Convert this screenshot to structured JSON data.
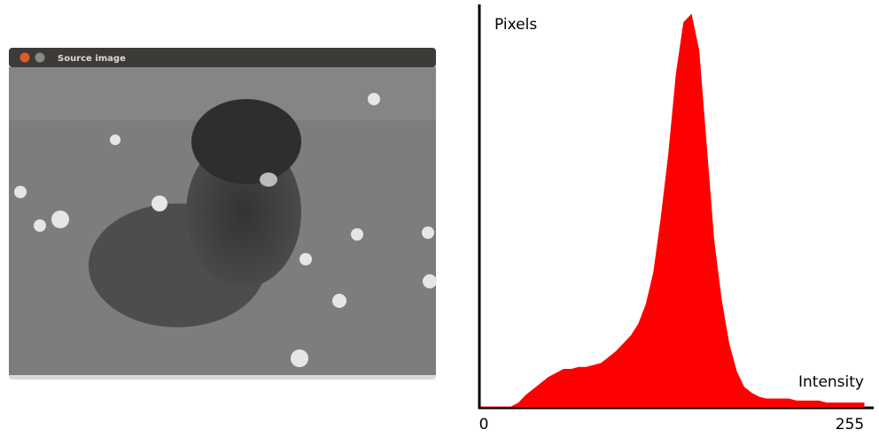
{
  "window": {
    "title": "Source image"
  },
  "chart_data": {
    "type": "area",
    "y_label": "Pixels",
    "x_label": "Intensity",
    "color": "#ff0000",
    "x": [
      0,
      5,
      10,
      15,
      20,
      25,
      30,
      35,
      40,
      45,
      50,
      55,
      60,
      65,
      70,
      75,
      80,
      85,
      90,
      95,
      100,
      105,
      110,
      115,
      120,
      125,
      130,
      135,
      140,
      145,
      150,
      155,
      160,
      165,
      170,
      175,
      180,
      185,
      190,
      195,
      200,
      205,
      210,
      215,
      220,
      225,
      230,
      235,
      240,
      245,
      250,
      255
    ],
    "values": [
      0,
      0,
      0,
      0,
      0,
      1,
      3,
      4.5,
      6,
      7.5,
      8.5,
      9.5,
      9.5,
      10,
      10,
      10.5,
      11,
      12.5,
      14,
      16,
      18,
      21,
      26,
      34,
      48,
      64,
      84,
      97,
      99,
      90,
      66,
      42,
      27,
      16,
      9,
      5,
      3.5,
      2.5,
      2,
      2,
      2,
      2,
      1.5,
      1.5,
      1.5,
      1.5,
      1,
      1,
      1,
      1,
      1,
      1
    ],
    "xlim": [
      0,
      255
    ],
    "xticks": [
      0,
      255
    ],
    "ylim": [
      0,
      100
    ]
  }
}
